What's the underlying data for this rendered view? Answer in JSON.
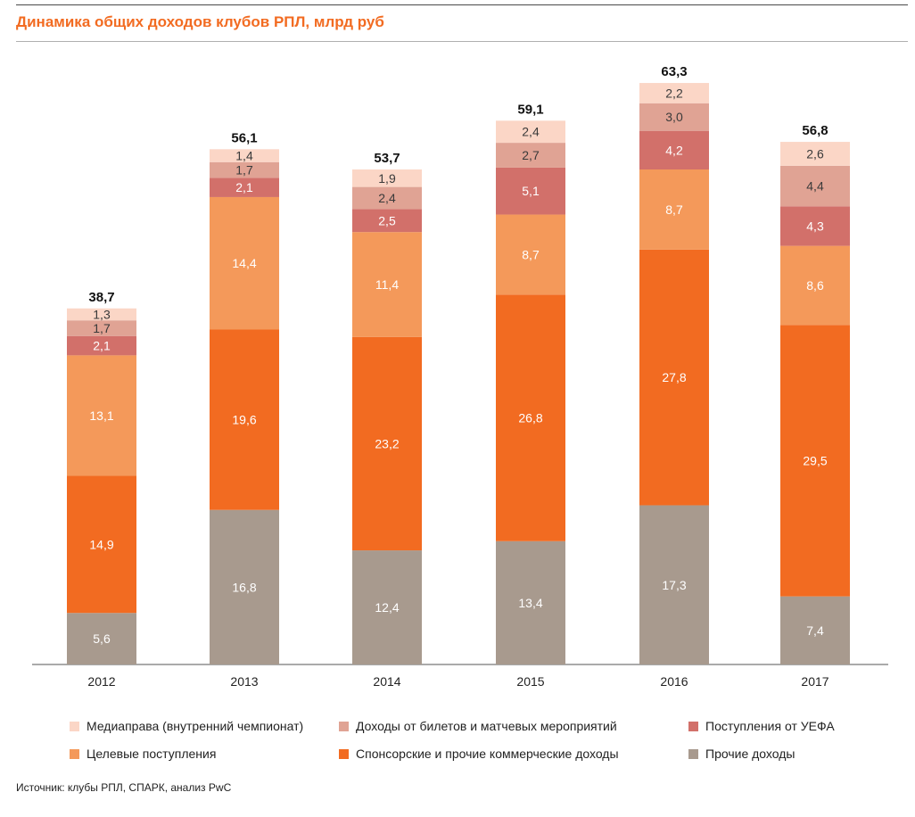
{
  "header": {
    "title": "Динамика общих доходов клубов РПЛ, млрд руб",
    "title_color": "#f26b21"
  },
  "chart_data": {
    "type": "bar",
    "stacked": true,
    "categories": [
      "2012",
      "2013",
      "2014",
      "2015",
      "2016",
      "2017"
    ],
    "totals": [
      "38,7",
      "56,1",
      "53,7",
      "59,1",
      "63,3",
      "56,8"
    ],
    "series": [
      {
        "name": "Прочие доходы",
        "color": "#a89a8e",
        "values": [
          5.6,
          16.8,
          12.4,
          13.4,
          17.3,
          7.4
        ],
        "labels": [
          "5,6",
          "16,8",
          "12,4",
          "13,4",
          "17,3",
          "7,4"
        ]
      },
      {
        "name": "Спонсорские и прочие коммерческие доходы",
        "color": "#f26b21",
        "values": [
          14.9,
          19.6,
          23.2,
          26.8,
          27.8,
          29.5
        ],
        "labels": [
          "14,9",
          "19,6",
          "23,2",
          "26,8",
          "27,8",
          "29,5"
        ]
      },
      {
        "name": "Целевые поступления",
        "color": "#f4995a",
        "values": [
          13.1,
          14.4,
          11.4,
          8.7,
          8.7,
          8.6
        ],
        "labels": [
          "13,1",
          "14,4",
          "11,4",
          "8,7",
          "8,7",
          "8,6"
        ]
      },
      {
        "name": "Поступления от УЕФА",
        "color": "#d2706a",
        "values": [
          2.1,
          2.1,
          2.5,
          5.1,
          4.2,
          4.3
        ],
        "labels": [
          "2,1",
          "2,1",
          "2,5",
          "5,1",
          "4,2",
          "4,3"
        ]
      },
      {
        "name": "Доходы от билетов и матчевых мероприятий",
        "color": "#e0a394",
        "values": [
          1.7,
          1.7,
          2.4,
          2.7,
          3.0,
          4.4
        ],
        "labels": [
          "1,7",
          "1,7",
          "2,4",
          "2,7",
          "3,0",
          "4,4"
        ]
      },
      {
        "name": "Медиаправа (внутренний чемпионат)",
        "color": "#fbd6c6",
        "values": [
          1.3,
          1.4,
          1.9,
          2.4,
          2.2,
          2.6
        ],
        "labels": [
          "1,3",
          "1,4",
          "1,9",
          "2,4",
          "2,2",
          "2,6"
        ]
      }
    ],
    "ylim": [
      0,
      63.3
    ],
    "legend_position": "bottom",
    "grid": false
  },
  "legend": {
    "items": [
      {
        "label": "Медиаправа (внутренний чемпионат)",
        "color": "#fbd6c6"
      },
      {
        "label": "Доходы от билетов и матчевых мероприятий",
        "color": "#e0a394"
      },
      {
        "label": "Поступления от УЕФА",
        "color": "#d2706a"
      },
      {
        "label": "Целевые поступления",
        "color": "#f4995a"
      },
      {
        "label": "Спонсорские и прочие коммерческие доходы",
        "color": "#f26b21"
      },
      {
        "label": "Прочие доходы",
        "color": "#a89a8e"
      }
    ]
  },
  "footer": {
    "source": "Источник: клубы РПЛ, СПАРК, анализ PwC"
  }
}
